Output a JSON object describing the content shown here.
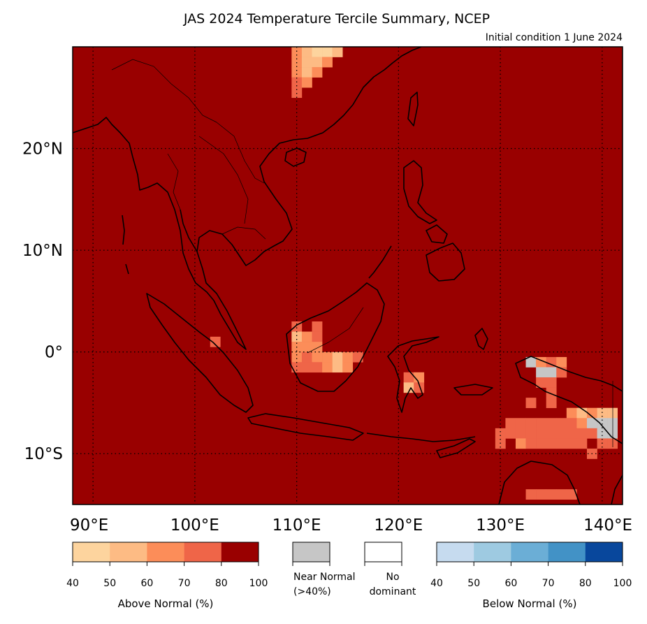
{
  "title": "JAS 2024 Temperature Tercile Summary, NCEP",
  "subtitle": "Initial condition 1 June 2024",
  "map": {
    "lon_range": [
      88,
      142
    ],
    "lat_range": [
      -15,
      30
    ],
    "background_category": "above_80_100",
    "lon_ticks": [
      {
        "value": 90,
        "label": "90°E"
      },
      {
        "value": 100,
        "label": "100°E"
      },
      {
        "value": 110,
        "label": "110°E"
      },
      {
        "value": 120,
        "label": "120°E"
      },
      {
        "value": 130,
        "label": "130°E"
      },
      {
        "value": 140,
        "label": "140°E"
      }
    ],
    "lat_ticks": [
      {
        "value": 20,
        "label": "20°N"
      },
      {
        "value": 10,
        "label": "10°N"
      },
      {
        "value": 0,
        "label": "0°"
      },
      {
        "value": -10,
        "label": "10°S"
      }
    ],
    "gridlines": "dotted",
    "anomaly_cells": [
      {
        "lon": 110,
        "lat": 29.5,
        "cat": "above_60_70"
      },
      {
        "lon": 111,
        "lat": 29.5,
        "cat": "above_50_60"
      },
      {
        "lon": 112,
        "lat": 29.5,
        "cat": "above_40_50"
      },
      {
        "lon": 113,
        "lat": 29.5,
        "cat": "above_40_50"
      },
      {
        "lon": 114,
        "lat": 29.5,
        "cat": "above_50_60"
      },
      {
        "lon": 110,
        "lat": 28.5,
        "cat": "above_60_70"
      },
      {
        "lon": 111,
        "lat": 28.5,
        "cat": "above_50_60"
      },
      {
        "lon": 112,
        "lat": 28.5,
        "cat": "above_50_60"
      },
      {
        "lon": 113,
        "lat": 28.5,
        "cat": "above_60_70"
      },
      {
        "lon": 110,
        "lat": 27.5,
        "cat": "above_60_70"
      },
      {
        "lon": 111,
        "lat": 27.5,
        "cat": "above_50_60"
      },
      {
        "lon": 112,
        "lat": 27.5,
        "cat": "above_60_70"
      },
      {
        "lon": 110,
        "lat": 26.5,
        "cat": "above_70_80"
      },
      {
        "lon": 111,
        "lat": 26.5,
        "cat": "above_60_70"
      },
      {
        "lon": 110,
        "lat": 25.5,
        "cat": "above_70_80"
      },
      {
        "lon": 102,
        "lat": 1,
        "cat": "above_70_80"
      },
      {
        "lon": 110,
        "lat": 2.5,
        "cat": "above_70_80"
      },
      {
        "lon": 112,
        "lat": 2.5,
        "cat": "above_70_80"
      },
      {
        "lon": 110,
        "lat": 1.5,
        "cat": "above_50_60"
      },
      {
        "lon": 111,
        "lat": 1.5,
        "cat": "above_60_70"
      },
      {
        "lon": 112,
        "lat": 1.5,
        "cat": "above_70_80"
      },
      {
        "lon": 110,
        "lat": 0.5,
        "cat": "above_60_70"
      },
      {
        "lon": 111,
        "lat": 0.5,
        "cat": "above_60_70"
      },
      {
        "lon": 112,
        "lat": 0.5,
        "cat": "above_60_70"
      },
      {
        "lon": 110,
        "lat": -0.5,
        "cat": "above_60_70"
      },
      {
        "lon": 111,
        "lat": -0.5,
        "cat": "above_70_80"
      },
      {
        "lon": 112,
        "lat": -0.5,
        "cat": "above_60_70"
      },
      {
        "lon": 113,
        "lat": -0.5,
        "cat": "above_60_70"
      },
      {
        "lon": 114,
        "lat": -0.5,
        "cat": "above_50_60"
      },
      {
        "lon": 115,
        "lat": -0.5,
        "cat": "above_60_70"
      },
      {
        "lon": 116,
        "lat": -0.5,
        "cat": "above_70_80"
      },
      {
        "lon": 110,
        "lat": -1.5,
        "cat": "above_70_80"
      },
      {
        "lon": 111,
        "lat": -1.5,
        "cat": "above_70_80"
      },
      {
        "lon": 112,
        "lat": -1.5,
        "cat": "above_70_80"
      },
      {
        "lon": 113,
        "lat": -1.5,
        "cat": "above_60_70"
      },
      {
        "lon": 114,
        "lat": -1.5,
        "cat": "above_50_60"
      },
      {
        "lon": 115,
        "lat": -1.5,
        "cat": "above_60_70"
      },
      {
        "lon": 121,
        "lat": -2.5,
        "cat": "above_70_80"
      },
      {
        "lon": 122,
        "lat": -2.5,
        "cat": "above_60_70"
      },
      {
        "lon": 121,
        "lat": -3.5,
        "cat": "above_50_60"
      },
      {
        "lon": 122,
        "lat": -3.5,
        "cat": "above_70_80"
      },
      {
        "lon": 133,
        "lat": -1,
        "cat": "near_normal"
      },
      {
        "lon": 134,
        "lat": -1,
        "cat": "above_60_70"
      },
      {
        "lon": 135,
        "lat": -1,
        "cat": "above_70_80"
      },
      {
        "lon": 136,
        "lat": -1,
        "cat": "above_60_70"
      },
      {
        "lon": 134,
        "lat": -2,
        "cat": "near_normal"
      },
      {
        "lon": 135,
        "lat": -2,
        "cat": "near_normal"
      },
      {
        "lon": 136,
        "lat": -2,
        "cat": "above_70_80"
      },
      {
        "lon": 134,
        "lat": -3,
        "cat": "above_70_80"
      },
      {
        "lon": 135,
        "lat": -3,
        "cat": "above_70_80"
      },
      {
        "lon": 135,
        "lat": -4,
        "cat": "above_70_80"
      },
      {
        "lon": 133,
        "lat": -5,
        "cat": "above_70_80"
      },
      {
        "lon": 135,
        "lat": -5,
        "cat": "above_70_80"
      },
      {
        "lon": 137,
        "lat": -6,
        "cat": "above_60_70"
      },
      {
        "lon": 138,
        "lat": -6,
        "cat": "above_50_60"
      },
      {
        "lon": 139,
        "lat": -6,
        "cat": "above_60_70"
      },
      {
        "lon": 140,
        "lat": -6,
        "cat": "above_50_60"
      },
      {
        "lon": 141,
        "lat": -6,
        "cat": "above_50_60"
      },
      {
        "lon": 131,
        "lat": -7,
        "cat": "above_70_80"
      },
      {
        "lon": 132,
        "lat": -7,
        "cat": "above_70_80"
      },
      {
        "lon": 133,
        "lat": -7,
        "cat": "above_70_80"
      },
      {
        "lon": 134,
        "lat": -7,
        "cat": "above_70_80"
      },
      {
        "lon": 135,
        "lat": -7,
        "cat": "above_70_80"
      },
      {
        "lon": 136,
        "lat": -7,
        "cat": "above_70_80"
      },
      {
        "lon": 137,
        "lat": -7,
        "cat": "above_70_80"
      },
      {
        "lon": 138,
        "lat": -7,
        "cat": "above_60_70"
      },
      {
        "lon": 139,
        "lat": -7,
        "cat": "near_normal"
      },
      {
        "lon": 140,
        "lat": -7,
        "cat": "near_normal"
      },
      {
        "lon": 141,
        "lat": -7,
        "cat": "near_normal"
      },
      {
        "lon": 130,
        "lat": -8,
        "cat": "above_70_80"
      },
      {
        "lon": 131,
        "lat": -8,
        "cat": "above_70_80"
      },
      {
        "lon": 132,
        "lat": -8,
        "cat": "above_70_80"
      },
      {
        "lon": 133,
        "lat": -8,
        "cat": "above_70_80"
      },
      {
        "lon": 134,
        "lat": -8,
        "cat": "above_70_80"
      },
      {
        "lon": 135,
        "lat": -8,
        "cat": "above_70_80"
      },
      {
        "lon": 136,
        "lat": -8,
        "cat": "above_70_80"
      },
      {
        "lon": 137,
        "lat": -8,
        "cat": "above_70_80"
      },
      {
        "lon": 138,
        "lat": -8,
        "cat": "above_70_80"
      },
      {
        "lon": 139,
        "lat": -8,
        "cat": "above_70_80"
      },
      {
        "lon": 140,
        "lat": -8,
        "cat": "near_normal"
      },
      {
        "lon": 141,
        "lat": -8,
        "cat": "near_normal"
      },
      {
        "lon": 130,
        "lat": -9,
        "cat": "above_70_80"
      },
      {
        "lon": 132,
        "lat": -9,
        "cat": "above_60_70"
      },
      {
        "lon": 133,
        "lat": -9,
        "cat": "above_70_80"
      },
      {
        "lon": 134,
        "lat": -9,
        "cat": "above_70_80"
      },
      {
        "lon": 135,
        "lat": -9,
        "cat": "above_70_80"
      },
      {
        "lon": 136,
        "lat": -9,
        "cat": "above_70_80"
      },
      {
        "lon": 137,
        "lat": -9,
        "cat": "above_70_80"
      },
      {
        "lon": 138,
        "lat": -9,
        "cat": "above_70_80"
      },
      {
        "lon": 140,
        "lat": -9,
        "cat": "above_70_80"
      },
      {
        "lon": 141,
        "lat": -9,
        "cat": "above_70_80"
      },
      {
        "lon": 139,
        "lat": -10,
        "cat": "above_70_80"
      },
      {
        "lon": 133,
        "lat": -14,
        "cat": "above_70_80"
      },
      {
        "lon": 134,
        "lat": -14,
        "cat": "above_70_80"
      },
      {
        "lon": 135,
        "lat": -14,
        "cat": "above_70_80"
      },
      {
        "lon": 136,
        "lat": -14,
        "cat": "above_70_80"
      },
      {
        "lon": 137,
        "lat": -14,
        "cat": "above_70_80"
      }
    ]
  },
  "legend": {
    "above": {
      "title": "Above Normal (%)",
      "ticks": [
        "40",
        "50",
        "60",
        "70",
        "80",
        "100"
      ],
      "colors": [
        "#fdd49e",
        "#fdbb84",
        "#fc8d59",
        "#ef6548",
        "#990000"
      ]
    },
    "near_normal": {
      "label_line1": "Near Normal",
      "label_line2": "(>40%)",
      "color": "#c6c6c6"
    },
    "no_dominant": {
      "label_line1": "No",
      "label_line2": "dominant",
      "color": "#ffffff"
    },
    "below": {
      "title": "Below Normal (%)",
      "ticks": [
        "40",
        "50",
        "60",
        "70",
        "80",
        "100"
      ],
      "colors": [
        "#c6dbef",
        "#9ecae1",
        "#6baed6",
        "#4292c6",
        "#08479c"
      ]
    }
  },
  "category_colors": {
    "above_40_50": "#fdd49e",
    "above_50_60": "#fdbb84",
    "above_60_70": "#fc8d59",
    "above_70_80": "#ef6548",
    "above_80_100": "#990000",
    "near_normal": "#c6c6c6"
  }
}
